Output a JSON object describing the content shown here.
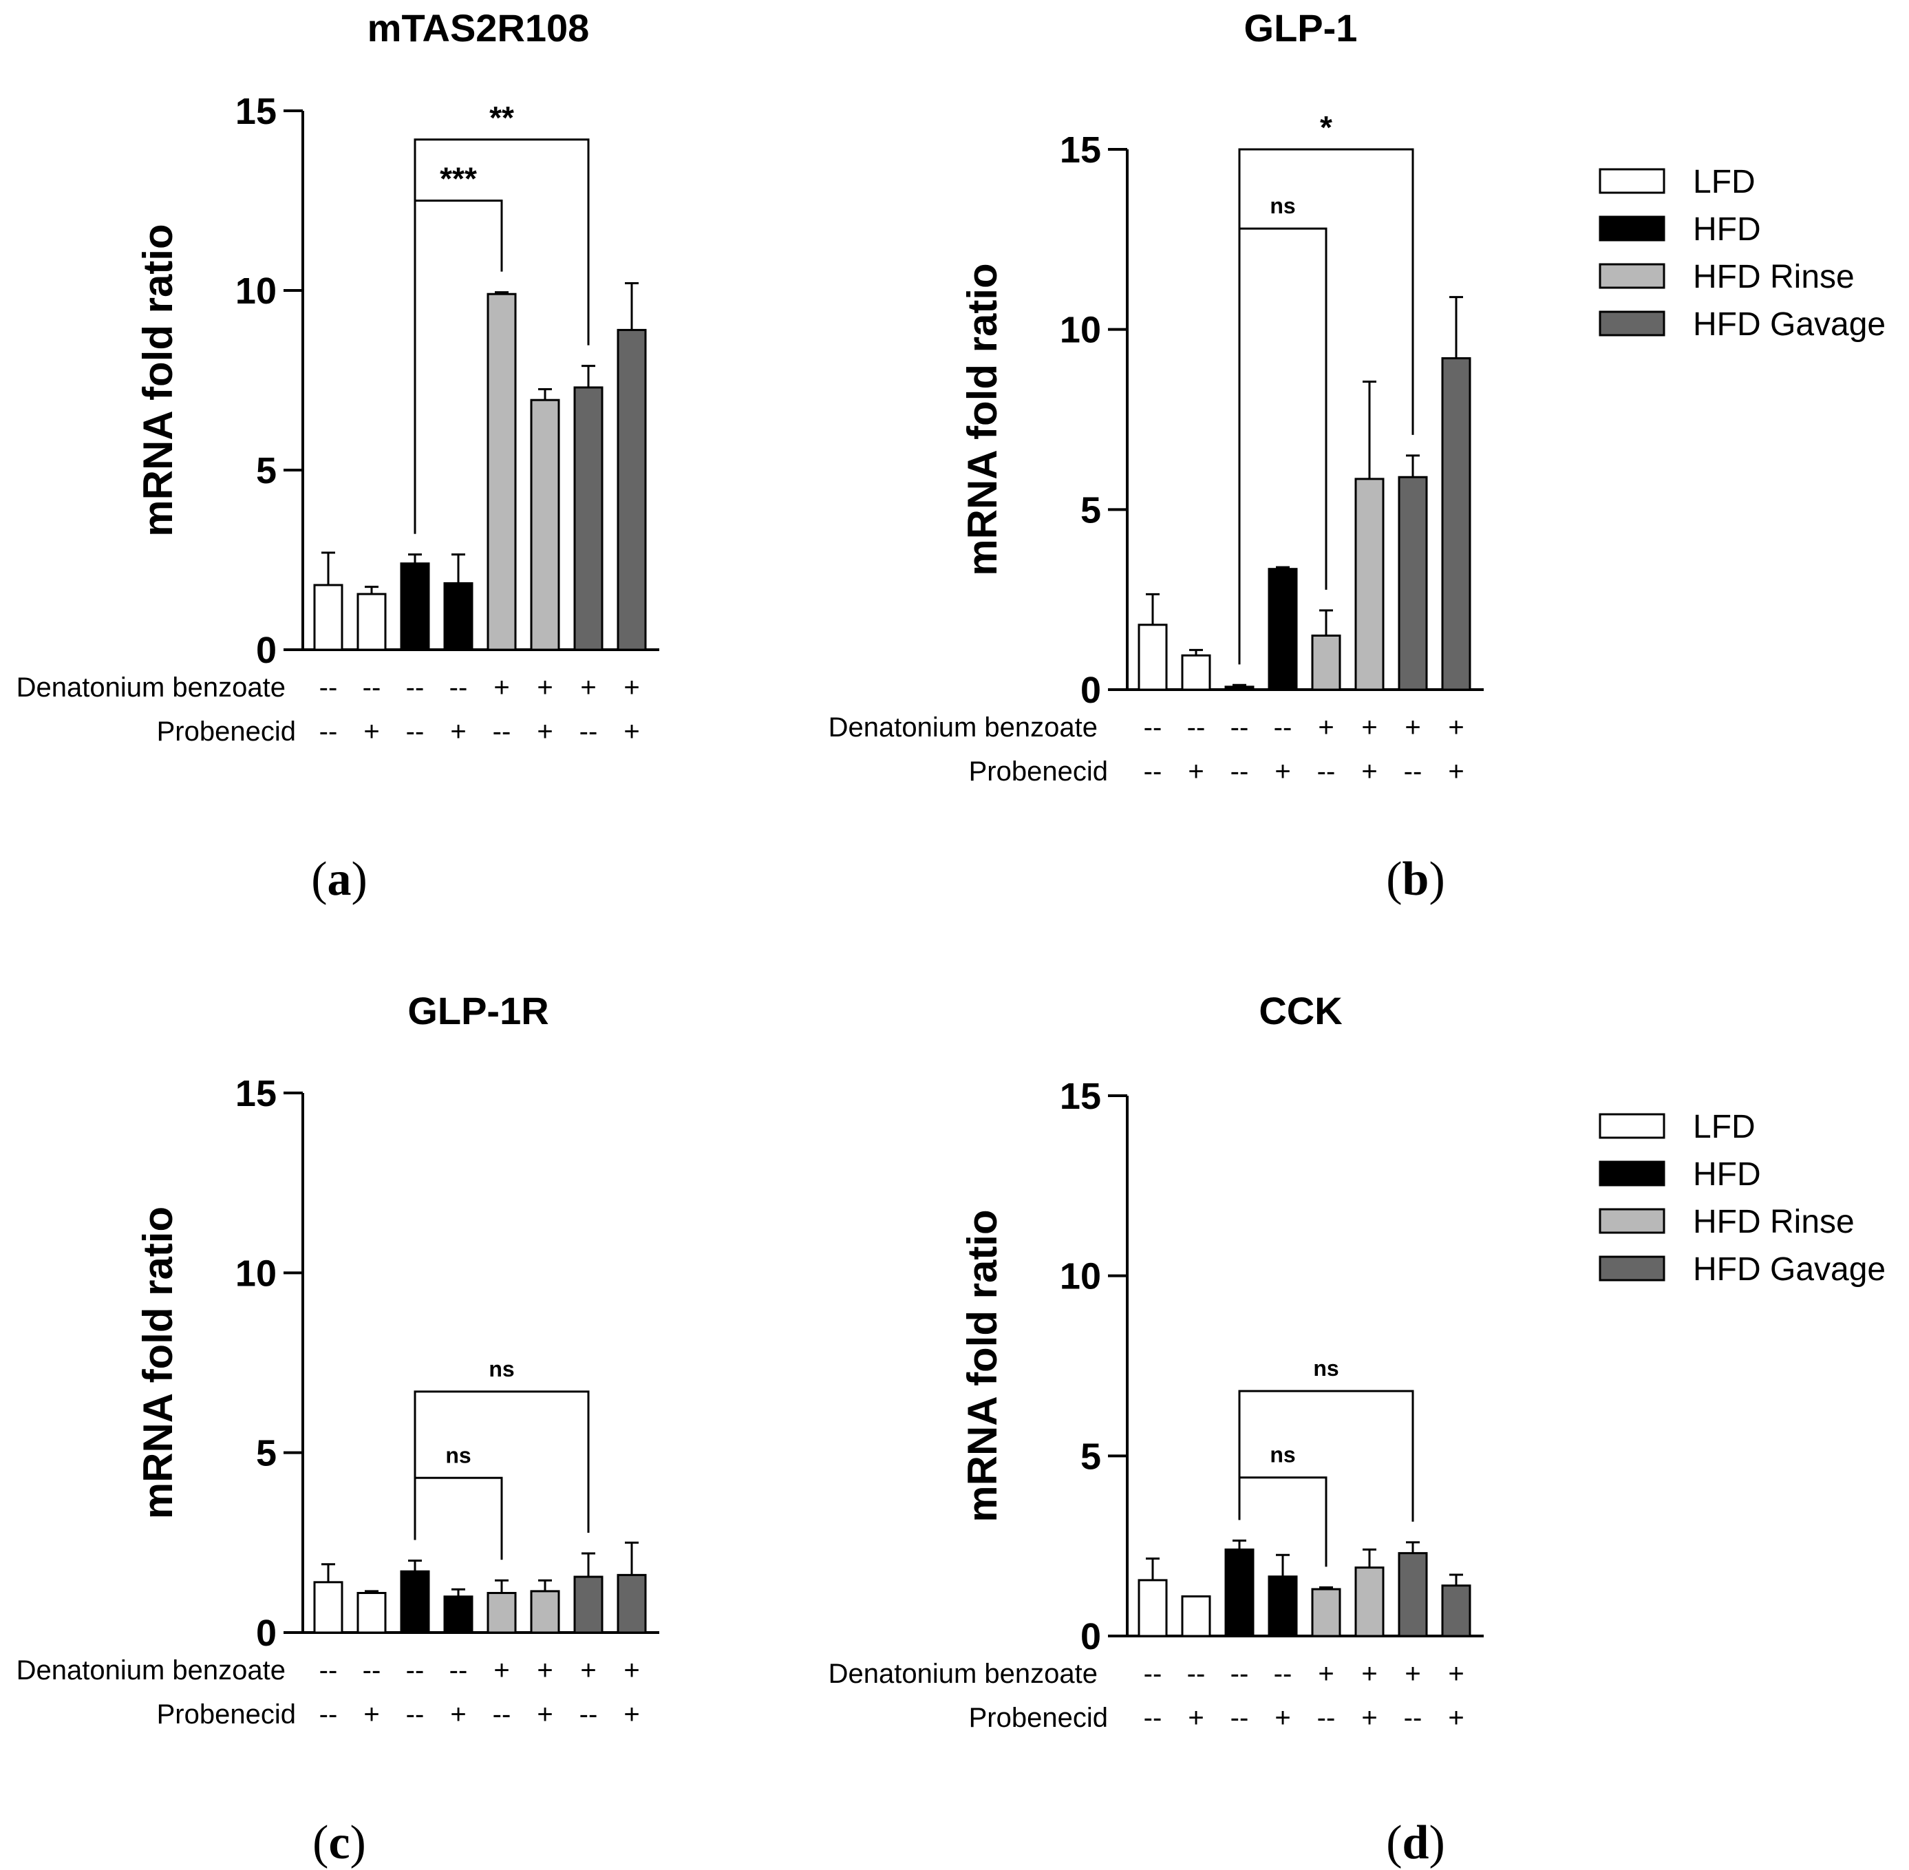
{
  "figure": {
    "condition_labels": [
      "Denatonium benzoate",
      "Probenecid"
    ],
    "denatonium_signs": [
      "--",
      "--",
      "--",
      "--",
      "+",
      "+",
      "+",
      "+"
    ],
    "probenecid_signs": [
      "--",
      "+",
      "--",
      "+",
      "--",
      "+",
      "--",
      "+"
    ],
    "legend": [
      {
        "label": "LFD",
        "color": "#ffffff"
      },
      {
        "label": "HFD",
        "color": "#000000"
      },
      {
        "label": "HFD Rinse",
        "color": "#b8b8b8"
      },
      {
        "label": "HFD Gavage",
        "color": "#666666"
      }
    ],
    "bar_colors": [
      "#ffffff",
      "#ffffff",
      "#000000",
      "#000000",
      "#b8b8b8",
      "#b8b8b8",
      "#666666",
      "#666666"
    ]
  },
  "chart_data": [
    {
      "type": "bar",
      "panel": "(a)",
      "title": "mTAS2R108",
      "ylabel": "mRNA fold ratio",
      "ylim": [
        0,
        15
      ],
      "yticks": [
        0,
        5,
        10,
        15
      ],
      "values": [
        1.8,
        1.55,
        2.4,
        1.85,
        9.9,
        6.95,
        7.3,
        8.9
      ],
      "errors": [
        0.9,
        0.2,
        0.25,
        0.8,
        0.05,
        0.3,
        0.6,
        1.3
      ],
      "brackets": [
        {
          "from": 2,
          "to": 4,
          "label": "***",
          "top": 12.5
        },
        {
          "from": 2,
          "to": 6,
          "label": "**",
          "top": 14.2
        }
      ]
    },
    {
      "type": "bar",
      "panel": "(b)",
      "title": "GLP-1",
      "ylabel": "mRNA fold ratio",
      "ylim": [
        0,
        15
      ],
      "yticks": [
        0,
        5,
        10,
        15
      ],
      "values": [
        1.8,
        0.95,
        0.08,
        3.35,
        1.5,
        5.85,
        5.9,
        9.2
      ],
      "errors": [
        0.85,
        0.15,
        0.05,
        0.05,
        0.7,
        2.7,
        0.6,
        1.7
      ],
      "brackets": [
        {
          "from": 2,
          "to": 4,
          "label": "ns",
          "top": 12.8
        },
        {
          "from": 2,
          "to": 6,
          "label": "*",
          "top": 15.0
        }
      ]
    },
    {
      "type": "bar",
      "panel": "(c)",
      "title": "GLP-1R",
      "ylabel": "mRNA fold ratio",
      "ylim": [
        0,
        15
      ],
      "yticks": [
        0,
        5,
        10,
        15
      ],
      "values": [
        1.4,
        1.1,
        1.7,
        1.0,
        1.1,
        1.15,
        1.55,
        1.6
      ],
      "errors": [
        0.5,
        0.05,
        0.3,
        0.2,
        0.35,
        0.3,
        0.65,
        0.9
      ],
      "brackets": [
        {
          "from": 2,
          "to": 4,
          "label": "ns",
          "top": 4.3
        },
        {
          "from": 2,
          "to": 6,
          "label": "ns",
          "top": 6.7
        }
      ]
    },
    {
      "type": "bar",
      "panel": "(d)",
      "title": "CCK",
      "ylabel": "mRNA fold ratio",
      "ylim": [
        0,
        15
      ],
      "yticks": [
        0,
        5,
        10,
        15
      ],
      "values": [
        1.55,
        1.1,
        2.4,
        1.65,
        1.3,
        1.9,
        2.3,
        1.4
      ],
      "errors": [
        0.6,
        0.0,
        0.25,
        0.6,
        0.05,
        0.5,
        0.3,
        0.3
      ],
      "brackets": [
        {
          "from": 2,
          "to": 4,
          "label": "ns",
          "top": 4.4
        },
        {
          "from": 2,
          "to": 6,
          "label": "ns",
          "top": 6.8
        }
      ]
    }
  ]
}
